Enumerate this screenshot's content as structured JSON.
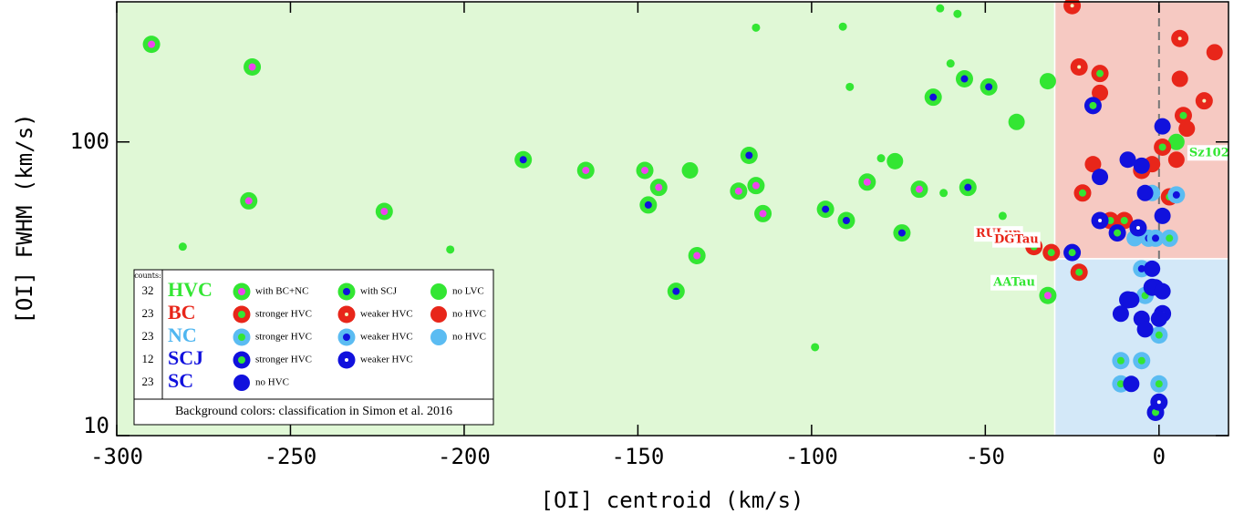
{
  "chart_data": {
    "type": "scatter",
    "xlabel": "[OI] centroid (km/s)",
    "ylabel": "[OI] FWHM (km/s)",
    "xlim": [
      -300,
      20
    ],
    "ylim": [
      10,
      300
    ],
    "ylog": true,
    "xticks": [
      -300,
      -250,
      -200,
      -150,
      -100,
      -50,
      0
    ],
    "yticks": [
      10,
      100
    ],
    "regions": [
      {
        "xlim": [
          -300,
          -30
        ],
        "ylim": [
          10,
          300
        ],
        "color": "#e0f8d6"
      },
      {
        "xlim": [
          -30,
          20
        ],
        "ylim": [
          40,
          300
        ],
        "color": "#f6c9c2"
      },
      {
        "xlim": [
          -30,
          20
        ],
        "ylim": [
          10,
          40
        ],
        "color": "#d3e8f8"
      }
    ],
    "vline": {
      "x": 0,
      "ylim": [
        40,
        300
      ],
      "color": "#777"
    },
    "legend": {
      "title": "counts:",
      "note": "Background colors: classification in Simon et al. 2016"
    },
    "groups": [
      {
        "label": "HVC",
        "count": 32,
        "color": "#33e633",
        "series": [
          {
            "name": "with BC+NC",
            "outer": "#33e633",
            "inner": "#ee44ee",
            "x": [
              -290,
              -261,
              -262,
              -223,
              -165,
              -148,
              -144,
              -121,
              -116,
              -114,
              -133,
              -69,
              -84,
              -32
            ],
            "values": [
              215,
              180,
              63,
              58,
              80,
              80,
              70,
              68,
              71,
              57,
              41,
              69,
              73,
              30
            ],
            "point_labels": [
              null,
              null,
              null,
              null,
              null,
              null,
              null,
              null,
              null,
              null,
              null,
              null,
              null,
              "AATau"
            ]
          },
          {
            "name": "with SCJ",
            "outer": "#33e633",
            "inner": "#1111dd",
            "x": [
              -183,
              -147,
              -139,
              -118,
              -96,
              -90,
              -74,
              -65,
              -56,
              -49,
              -55
            ],
            "values": [
              87,
              61,
              31,
              90,
              59,
              54,
              49,
              142,
              164,
              154,
              70
            ]
          },
          {
            "name": "no LVC",
            "outer": "#33e633",
            "inner": null,
            "x": [
              -135,
              -76,
              -41,
              -32,
              5,
              -281,
              -204,
              -116,
              -91,
              -89,
              -80,
              -62,
              -60,
              -63,
              -58,
              -45,
              -99
            ],
            "values": [
              80,
              86,
              117,
              161,
              100,
              44,
              43,
              245,
              247,
              154,
              88,
              67,
              185,
              285,
              273,
              56,
              20
            ],
            "marker": [
              "large",
              "large",
              "large",
              "large",
              "large",
              "small",
              "small",
              "small",
              "small",
              "small",
              "small",
              "small",
              "small",
              "small",
              "small",
              "small",
              "small"
            ],
            "point_labels": [
              null,
              null,
              null,
              null,
              "Sz102",
              null,
              null,
              null,
              null,
              null,
              null,
              null,
              null,
              null,
              null,
              null,
              null
            ]
          }
        ]
      },
      {
        "label": "BC",
        "count": 23,
        "color": "#e8261a",
        "series": [
          {
            "name": "stronger HVC",
            "outer": "#e8261a",
            "inner": "#33e633",
            "x": [
              -36,
              -31,
              -23,
              -22,
              -17,
              -14,
              -10,
              1,
              3,
              7,
              -5
            ],
            "values": [
              44,
              42,
              36,
              67,
              171,
              54,
              54,
              96,
              65,
              123,
              80
            ],
            "point_labels": [
              "RULup",
              "DGTau",
              null,
              null,
              null,
              null,
              null,
              null,
              null,
              null,
              null
            ]
          },
          {
            "name": "weaker HVC",
            "outer": "#e8261a",
            "inner": "#f5f5c0",
            "x": [
              -23,
              6,
              -25,
              13
            ],
            "values": [
              180,
              225,
              291,
              138
            ]
          },
          {
            "name": "no HVC",
            "outer": "#e8261a",
            "inner": null,
            "x": [
              -17,
              6,
              16,
              8,
              5,
              -19,
              -2
            ],
            "values": [
              147,
              164,
              202,
              111,
              87,
              84,
              84
            ]
          }
        ]
      },
      {
        "label": "NC",
        "count": 23,
        "color": "#4fb6f0",
        "series": [
          {
            "name": "stronger HVC",
            "outer": "#5bbcf2",
            "inner": "#33e633",
            "x": [
              -11,
              -5,
              0,
              -11,
              0,
              -4,
              3
            ],
            "values": [
              15,
              18,
              15,
              18,
              22,
              30,
              47
            ]
          },
          {
            "name": "weaker HVC",
            "outer": "#5bbcf2",
            "inner": "#1111dd",
            "x": [
              -5,
              5,
              -3,
              -1
            ],
            "values": [
              37,
              66,
              47,
              47
            ]
          },
          {
            "name": "no HVC",
            "outer": "#5bbcf2",
            "inner": null,
            "x": [
              -7,
              -2
            ],
            "values": [
              47,
              67
            ]
          }
        ]
      },
      {
        "label": "SCJ",
        "count": 12,
        "color": "#1111dd",
        "series": [
          {
            "name": "stronger HVC",
            "outer": "#1111dd",
            "inner": "#33e633",
            "x": [
              -19,
              -12,
              -25,
              -1,
              -9
            ],
            "values": [
              133,
              49,
              42,
              12,
              29
            ]
          },
          {
            "name": "weaker HVC",
            "outer": "#1111dd",
            "inner": "#ffffff",
            "x": [
              0,
              -17,
              -6,
              1,
              -2
            ],
            "values": [
              13,
              54,
              51,
              26,
              32
            ]
          }
        ]
      },
      {
        "label": "SC",
        "count": 23,
        "color": "#1111dd",
        "series": [
          {
            "name": "no HVC",
            "outer": "#1111dd",
            "inner": null,
            "x": [
              1,
              1,
              -17,
              -4,
              -9,
              -5,
              -2,
              -1,
              1,
              -11,
              -5,
              0,
              -8,
              -8,
              -4
            ],
            "values": [
              113,
              56,
              76,
              67,
              87,
              83,
              37,
              32,
              31,
              26,
              25,
              25,
              15,
              29,
              23
            ]
          }
        ]
      }
    ]
  }
}
